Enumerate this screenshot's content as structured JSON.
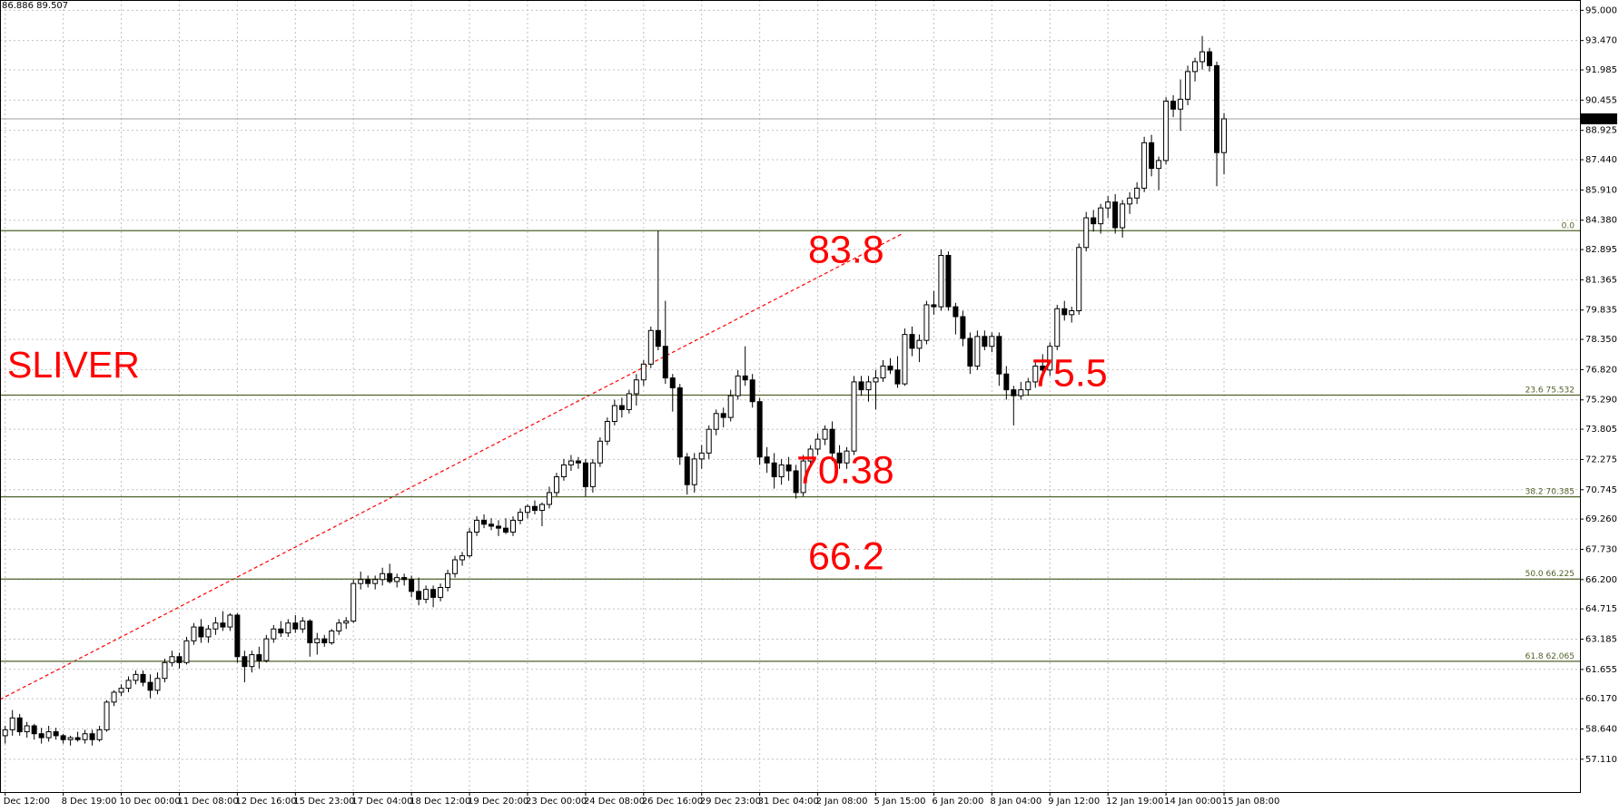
{
  "chart_data": {
    "type": "candlestick",
    "info": "86.886 89.507",
    "annotations": [
      "SLIVER",
      "83.8",
      "75.5",
      "70.38",
      "66.2"
    ],
    "ylim": [
      55.45,
      95.52
    ],
    "yticks": [
      {
        "value": 95,
        "label": "95.000"
      },
      {
        "value": 93.47,
        "label": "93.470"
      },
      {
        "value": 91.985,
        "label": "91.985"
      },
      {
        "value": 90.455,
        "label": "90.455"
      },
      {
        "value": 88.925,
        "label": "88.925"
      },
      {
        "value": 87.44,
        "label": "87.440"
      },
      {
        "value": 85.91,
        "label": "85.910"
      },
      {
        "value": 84.38,
        "label": "84.380"
      },
      {
        "value": 82.895,
        "label": "82.895"
      },
      {
        "value": 81.365,
        "label": "81.365"
      },
      {
        "value": 79.835,
        "label": "79.835"
      },
      {
        "value": 78.35,
        "label": "78.350"
      },
      {
        "value": 76.82,
        "label": "76.820"
      },
      {
        "value": 75.29,
        "label": "75.290"
      },
      {
        "value": 73.805,
        "label": "73.805"
      },
      {
        "value": 72.275,
        "label": "72.275"
      },
      {
        "value": 70.745,
        "label": "70.745"
      },
      {
        "value": 69.26,
        "label": "69.260"
      },
      {
        "value": 67.73,
        "label": "67.730"
      },
      {
        "value": 66.2,
        "label": "66.200"
      },
      {
        "value": 64.715,
        "label": "64.715"
      },
      {
        "value": 63.185,
        "label": "63.185"
      },
      {
        "value": 61.655,
        "label": "61.655"
      },
      {
        "value": 60.17,
        "label": "60.170"
      },
      {
        "value": 58.64,
        "label": "58.640"
      },
      {
        "value": 57.11,
        "label": "57.110"
      }
    ],
    "grid": true,
    "bull_color": "#ffffff",
    "bear_color": "#000000",
    "fib_color": "#4f6228",
    "last_price": {
      "value": 89.507,
      "label": "89.507"
    },
    "fib_levels": [
      {
        "value": 83.85,
        "label": "0.0"
      },
      {
        "value": 75.532,
        "label": "23.6 75.532"
      },
      {
        "value": 70.385,
        "label": "38.2 70.385"
      },
      {
        "value": 66.225,
        "label": "50.0 66.225"
      },
      {
        "value": 62.065,
        "label": "61.8 62.065"
      }
    ],
    "categories": [
      "Dec 12:00",
      null,
      null,
      null,
      null,
      null,
      null,
      null,
      "8 Dec 19:00",
      null,
      null,
      null,
      null,
      null,
      null,
      null,
      "10 Dec 00:00",
      null,
      null,
      null,
      null,
      null,
      null,
      null,
      "11 Dec 08:00",
      null,
      null,
      null,
      null,
      null,
      null,
      null,
      "12 Dec 16:00",
      null,
      null,
      null,
      null,
      null,
      null,
      null,
      "15 Dec 23:00",
      null,
      null,
      null,
      null,
      null,
      null,
      null,
      "17 Dec 04:00",
      null,
      null,
      null,
      null,
      null,
      null,
      null,
      "18 Dec 12:00",
      null,
      null,
      null,
      null,
      null,
      null,
      null,
      "19 Dec 20:00",
      null,
      null,
      null,
      null,
      null,
      null,
      null,
      "23 Dec 00:00",
      null,
      null,
      null,
      null,
      null,
      null,
      null,
      "24 Dec 08:00",
      null,
      null,
      null,
      null,
      null,
      null,
      null,
      "26 Dec 16:00",
      null,
      null,
      null,
      null,
      null,
      null,
      null,
      "29 Dec 23:00",
      null,
      null,
      null,
      null,
      null,
      null,
      null,
      "31 Dec 04:00",
      null,
      null,
      null,
      null,
      null,
      null,
      null,
      "2 Jan 08:00",
      null,
      null,
      null,
      null,
      null,
      null,
      null,
      "5 Jan 15:00",
      null,
      null,
      null,
      null,
      null,
      null,
      null,
      "6 Jan 20:00",
      null,
      null,
      null,
      null,
      null,
      null,
      null,
      "8 Jan 04:00",
      null,
      null,
      null,
      null,
      null,
      null,
      null,
      "9 Jan 12:00",
      null,
      null,
      null,
      null,
      null,
      null,
      null,
      "12 Jan 19:00",
      null,
      null,
      null,
      null,
      null,
      null,
      null,
      "14 Jan 00:00",
      null,
      null,
      null,
      null,
      null,
      null,
      null,
      "15 Jan 08:00"
    ],
    "candles": [
      [
        58.3,
        58.8,
        57.9,
        58.6
      ],
      [
        58.6,
        59.6,
        58.3,
        59.2
      ],
      [
        59.2,
        59.4,
        58.3,
        58.5
      ],
      [
        58.5,
        59.0,
        58.2,
        58.8
      ],
      [
        58.8,
        58.9,
        58.1,
        58.4
      ],
      [
        58.4,
        58.7,
        57.9,
        58.2
      ],
      [
        58.2,
        58.8,
        58.0,
        58.5
      ],
      [
        58.5,
        58.7,
        58.1,
        58.3
      ],
      [
        58.3,
        58.4,
        57.9,
        58.1
      ],
      [
        58.1,
        58.3,
        57.8,
        58.2
      ],
      [
        58.2,
        58.5,
        58.0,
        58.1
      ],
      [
        58.1,
        58.6,
        57.9,
        58.4
      ],
      [
        58.4,
        58.6,
        57.8,
        58.1
      ],
      [
        58.1,
        58.8,
        58.0,
        58.6
      ],
      [
        58.6,
        60.1,
        58.5,
        60.0
      ],
      [
        60.0,
        60.6,
        59.8,
        60.5
      ],
      [
        60.5,
        60.9,
        60.3,
        60.7
      ],
      [
        60.7,
        61.3,
        60.5,
        61.1
      ],
      [
        61.1,
        61.6,
        60.9,
        61.4
      ],
      [
        61.4,
        61.6,
        60.8,
        61.0
      ],
      [
        61.0,
        61.4,
        60.2,
        60.6
      ],
      [
        60.6,
        61.5,
        60.4,
        61.2
      ],
      [
        61.2,
        62.2,
        61.0,
        62.0
      ],
      [
        62.0,
        62.6,
        61.8,
        62.3
      ],
      [
        62.3,
        62.5,
        61.7,
        62.0
      ],
      [
        62.0,
        63.3,
        61.9,
        63.1
      ],
      [
        63.1,
        64.0,
        62.9,
        63.8
      ],
      [
        63.8,
        64.2,
        63.0,
        63.3
      ],
      [
        63.3,
        63.9,
        63.0,
        63.7
      ],
      [
        63.7,
        64.3,
        63.4,
        64.0
      ],
      [
        64.0,
        64.6,
        63.6,
        63.8
      ],
      [
        63.8,
        64.5,
        63.6,
        64.4
      ],
      [
        64.4,
        64.5,
        62.0,
        62.3
      ],
      [
        62.3,
        62.6,
        61.0,
        61.8
      ],
      [
        61.8,
        62.6,
        61.5,
        62.4
      ],
      [
        62.4,
        62.8,
        61.7,
        62.1
      ],
      [
        62.1,
        63.4,
        62.0,
        63.2
      ],
      [
        63.2,
        63.9,
        63.0,
        63.7
      ],
      [
        63.7,
        64.1,
        63.3,
        63.5
      ],
      [
        63.5,
        64.2,
        63.3,
        64.0
      ],
      [
        64.0,
        64.4,
        63.5,
        63.7
      ],
      [
        63.7,
        64.3,
        63.5,
        64.1
      ],
      [
        64.1,
        64.2,
        62.3,
        63.0
      ],
      [
        63.0,
        63.5,
        62.4,
        63.2
      ],
      [
        63.2,
        63.4,
        62.8,
        63.0
      ],
      [
        63.0,
        63.7,
        62.9,
        63.6
      ],
      [
        63.6,
        64.2,
        63.4,
        64.0
      ],
      [
        64.0,
        64.3,
        63.7,
        64.1
      ],
      [
        64.1,
        66.2,
        64.0,
        66.0
      ],
      [
        66.0,
        66.6,
        65.7,
        66.2
      ],
      [
        66.2,
        66.4,
        65.8,
        66.0
      ],
      [
        66.0,
        66.4,
        65.7,
        66.2
      ],
      [
        66.2,
        66.8,
        65.9,
        66.5
      ],
      [
        66.5,
        67.0,
        66.0,
        66.1
      ],
      [
        66.1,
        66.5,
        65.8,
        66.3
      ],
      [
        66.3,
        66.5,
        65.9,
        66.2
      ],
      [
        66.2,
        66.4,
        65.3,
        65.6
      ],
      [
        65.6,
        66.3,
        64.9,
        65.2
      ],
      [
        65.2,
        65.9,
        65.0,
        65.7
      ],
      [
        65.7,
        65.9,
        64.8,
        65.3
      ],
      [
        65.3,
        66.0,
        65.1,
        65.8
      ],
      [
        65.8,
        66.7,
        65.6,
        66.5
      ],
      [
        66.5,
        67.4,
        66.3,
        67.2
      ],
      [
        67.2,
        67.6,
        66.9,
        67.4
      ],
      [
        67.4,
        68.8,
        67.3,
        68.6
      ],
      [
        68.6,
        69.4,
        68.4,
        69.2
      ],
      [
        69.2,
        69.5,
        68.8,
        69.0
      ],
      [
        69.0,
        69.3,
        68.7,
        68.9
      ],
      [
        68.9,
        69.2,
        68.4,
        68.8
      ],
      [
        68.8,
        69.3,
        68.5,
        68.6
      ],
      [
        68.6,
        69.4,
        68.4,
        69.2
      ],
      [
        69.2,
        69.8,
        69.0,
        69.6
      ],
      [
        69.6,
        70.0,
        69.3,
        69.9
      ],
      [
        69.9,
        70.2,
        69.5,
        69.7
      ],
      [
        69.7,
        70.1,
        68.9,
        70.0
      ],
      [
        70.0,
        70.9,
        69.8,
        70.6
      ],
      [
        70.6,
        71.6,
        70.4,
        71.4
      ],
      [
        71.4,
        72.3,
        71.2,
        72.0
      ],
      [
        72.0,
        72.5,
        71.7,
        72.2
      ],
      [
        72.2,
        72.4,
        71.8,
        72.1
      ],
      [
        72.1,
        72.3,
        70.4,
        70.9
      ],
      [
        70.9,
        72.3,
        70.6,
        72.1
      ],
      [
        72.1,
        73.4,
        71.9,
        73.2
      ],
      [
        73.2,
        74.4,
        73.0,
        74.2
      ],
      [
        74.2,
        75.3,
        74.0,
        75.0
      ],
      [
        75.0,
        75.4,
        74.4,
        74.8
      ],
      [
        74.8,
        75.8,
        74.6,
        75.6
      ],
      [
        75.6,
        76.6,
        75.0,
        76.3
      ],
      [
        76.3,
        77.3,
        76.0,
        77.1
      ],
      [
        77.1,
        79.0,
        76.9,
        78.8
      ],
      [
        78.8,
        83.85,
        77.8,
        78.0
      ],
      [
        78.0,
        80.3,
        76.1,
        76.4
      ],
      [
        76.4,
        76.6,
        74.7,
        75.9
      ],
      [
        75.9,
        76.1,
        72.0,
        72.4
      ],
      [
        72.4,
        72.6,
        70.5,
        71.0
      ],
      [
        71.0,
        72.6,
        70.6,
        72.3
      ],
      [
        72.3,
        73.0,
        71.8,
        72.6
      ],
      [
        72.6,
        74.0,
        72.3,
        73.8
      ],
      [
        73.8,
        74.8,
        73.5,
        74.6
      ],
      [
        74.6,
        74.9,
        73.9,
        74.4
      ],
      [
        74.4,
        75.8,
        74.2,
        75.5
      ],
      [
        75.5,
        76.8,
        75.3,
        76.5
      ],
      [
        76.5,
        78.0,
        76.0,
        76.3
      ],
      [
        76.3,
        76.6,
        74.9,
        75.2
      ],
      [
        75.2,
        75.4,
        72.0,
        72.4
      ],
      [
        72.4,
        72.9,
        71.6,
        72.1
      ],
      [
        72.1,
        72.6,
        70.8,
        71.4
      ],
      [
        71.4,
        72.3,
        71.0,
        72.0
      ],
      [
        72.0,
        72.4,
        71.2,
        71.7
      ],
      [
        71.7,
        72.0,
        70.3,
        70.6
      ],
      [
        70.6,
        72.5,
        70.4,
        72.2
      ],
      [
        72.2,
        73.0,
        72.0,
        72.8
      ],
      [
        72.8,
        73.6,
        72.5,
        73.3
      ],
      [
        73.3,
        74.0,
        73.0,
        73.8
      ],
      [
        73.8,
        74.2,
        72.2,
        72.6
      ],
      [
        72.6,
        73.0,
        71.8,
        72.1
      ],
      [
        72.1,
        72.9,
        71.8,
        72.7
      ],
      [
        72.7,
        76.5,
        72.5,
        76.2
      ],
      [
        76.2,
        76.5,
        75.5,
        75.8
      ],
      [
        75.8,
        76.5,
        75.2,
        76.2
      ],
      [
        76.2,
        76.8,
        74.8,
        76.4
      ],
      [
        76.4,
        77.3,
        76.2,
        77.0
      ],
      [
        77.0,
        77.4,
        76.6,
        76.8
      ],
      [
        76.8,
        77.5,
        75.9,
        76.1
      ],
      [
        76.1,
        78.9,
        76.0,
        78.6
      ],
      [
        78.6,
        79.0,
        77.5,
        77.9
      ],
      [
        77.9,
        78.6,
        77.2,
        78.3
      ],
      [
        78.3,
        80.3,
        78.1,
        80.1
      ],
      [
        80.1,
        80.8,
        79.6,
        80.0
      ],
      [
        80.0,
        82.9,
        79.8,
        82.6
      ],
      [
        82.6,
        82.8,
        79.8,
        80.0
      ],
      [
        80.0,
        80.2,
        78.6,
        79.5
      ],
      [
        79.5,
        79.8,
        78.0,
        78.4
      ],
      [
        78.4,
        78.7,
        76.6,
        77.0
      ],
      [
        77.0,
        78.8,
        76.8,
        78.5
      ],
      [
        78.5,
        78.8,
        77.8,
        78.0
      ],
      [
        78.0,
        78.7,
        77.7,
        78.5
      ],
      [
        78.5,
        78.7,
        76.0,
        76.6
      ],
      [
        76.6,
        77.0,
        75.3,
        75.8
      ],
      [
        75.8,
        76.0,
        74.0,
        75.5
      ],
      [
        75.5,
        76.2,
        75.3,
        75.8
      ],
      [
        75.8,
        76.4,
        75.5,
        76.2
      ],
      [
        76.2,
        77.3,
        75.9,
        77.0
      ],
      [
        77.0,
        77.6,
        76.6,
        76.8
      ],
      [
        76.8,
        78.2,
        76.5,
        78.0
      ],
      [
        78.0,
        80.1,
        77.8,
        79.9
      ],
      [
        79.9,
        80.3,
        79.3,
        79.6
      ],
      [
        79.6,
        80.0,
        79.2,
        79.8
      ],
      [
        79.8,
        83.2,
        79.6,
        83.0
      ],
      [
        83.0,
        84.8,
        82.8,
        84.5
      ],
      [
        84.5,
        84.9,
        83.8,
        84.2
      ],
      [
        84.2,
        85.2,
        83.7,
        85.0
      ],
      [
        85.0,
        85.6,
        84.5,
        85.3
      ],
      [
        85.3,
        85.7,
        83.7,
        84.0
      ],
      [
        84.0,
        85.4,
        83.5,
        85.2
      ],
      [
        85.2,
        85.8,
        84.7,
        85.5
      ],
      [
        85.5,
        86.3,
        85.2,
        86.0
      ],
      [
        86.0,
        88.6,
        85.8,
        88.3
      ],
      [
        88.3,
        88.7,
        86.6,
        87.0
      ],
      [
        87.0,
        87.6,
        85.9,
        87.4
      ],
      [
        87.4,
        90.6,
        87.2,
        90.4
      ],
      [
        90.4,
        90.7,
        89.6,
        90.0
      ],
      [
        90.0,
        91.5,
        88.9,
        90.5
      ],
      [
        90.5,
        92.2,
        90.2,
        91.9
      ],
      [
        91.9,
        92.6,
        91.4,
        92.4
      ],
      [
        92.4,
        93.7,
        92.0,
        92.9
      ],
      [
        92.9,
        93.1,
        91.9,
        92.2
      ],
      [
        92.2,
        92.4,
        86.1,
        87.8
      ],
      [
        87.8,
        89.8,
        86.7,
        89.507
      ]
    ]
  }
}
